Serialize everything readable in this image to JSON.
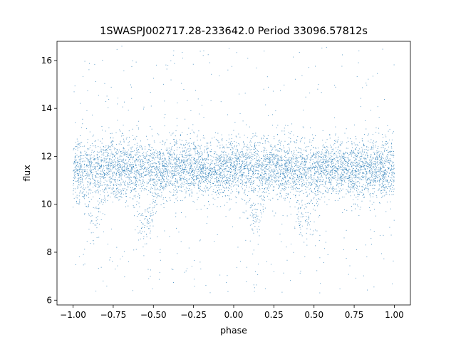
{
  "chart_data": {
    "type": "scatter",
    "title": "1SWASPJ002717.28-233642.0 Period 33096.57812s",
    "xlabel": "phase",
    "ylabel": "flux",
    "xlim": [
      -1.1,
      1.1
    ],
    "ylim": [
      5.8,
      16.8
    ],
    "x_ticks": [
      -1.0,
      -0.75,
      -0.5,
      -0.25,
      0.0,
      0.25,
      0.5,
      0.75,
      1.0
    ],
    "x_tick_labels": [
      "−1.00",
      "−0.75",
      "−0.50",
      "−0.25",
      "0.00",
      "0.25",
      "0.50",
      "0.75",
      "1.00"
    ],
    "y_ticks": [
      6,
      8,
      10,
      12,
      14,
      16
    ],
    "y_tick_labels": [
      "6",
      "8",
      "10",
      "12",
      "14",
      "16"
    ],
    "grid": false,
    "marker_color": "#1f77b4",
    "series": [
      {
        "x_range": [
          -1.0,
          1.0
        ],
        "y_range": [
          6.3,
          16.6
        ],
        "baseline_flux": 11.5,
        "baseline_scatter": 0.6,
        "dips": [
          {
            "phase": -0.87,
            "min_flux": 9.4
          },
          {
            "phase": -0.55,
            "min_flux": 9.1
          },
          {
            "phase": 0.13,
            "min_flux": 9.4
          },
          {
            "phase": 0.45,
            "min_flux": 9.1
          }
        ]
      }
    ]
  }
}
